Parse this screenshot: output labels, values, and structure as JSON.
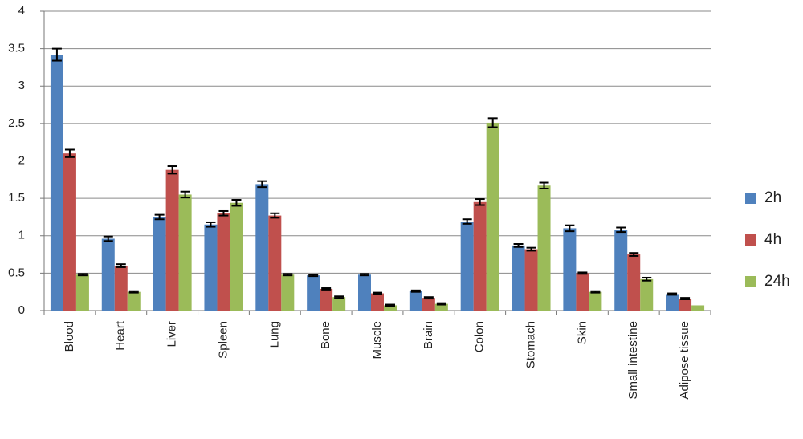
{
  "chart_data": {
    "type": "bar",
    "categories": [
      "Blood",
      "Heart",
      "Liver",
      "Spleen",
      "Lung",
      "Bone",
      "Muscle",
      "Brain",
      "Colon",
      "Stomach",
      "Skin",
      "Small intestine",
      "Adipose tissue"
    ],
    "series": [
      {
        "name": "2h",
        "color": "#4f81bd",
        "values": [
          3.42,
          0.96,
          1.25,
          1.15,
          1.69,
          0.47,
          0.48,
          0.26,
          1.19,
          0.87,
          1.1,
          1.08,
          0.22
        ],
        "errors": [
          0.08,
          0.03,
          0.03,
          0.03,
          0.04,
          0.01,
          0.01,
          0.01,
          0.03,
          0.02,
          0.04,
          0.03,
          0.01
        ]
      },
      {
        "name": "4h",
        "color": "#c0504d",
        "values": [
          2.1,
          0.6,
          1.88,
          1.3,
          1.27,
          0.29,
          0.23,
          0.17,
          1.45,
          0.82,
          0.5,
          0.75,
          0.16
        ],
        "errors": [
          0.05,
          0.02,
          0.05,
          0.03,
          0.03,
          0.01,
          0.01,
          0.01,
          0.04,
          0.02,
          0.01,
          0.02,
          0.01
        ]
      },
      {
        "name": "24h",
        "color": "#9bbb59",
        "values": [
          0.48,
          0.25,
          1.55,
          1.44,
          0.48,
          0.18,
          0.07,
          0.09,
          2.51,
          1.67,
          0.25,
          0.42,
          0.07
        ],
        "errors": [
          0.01,
          0.01,
          0.04,
          0.04,
          0.01,
          0.01,
          0.01,
          0.01,
          0.06,
          0.04,
          0.01,
          0.02,
          null
        ]
      }
    ],
    "ylim": [
      0,
      4
    ],
    "yticks": [
      0,
      0.5,
      1,
      1.5,
      2,
      2.5,
      3,
      3.5,
      4
    ],
    "grid": true,
    "legend": "right"
  }
}
